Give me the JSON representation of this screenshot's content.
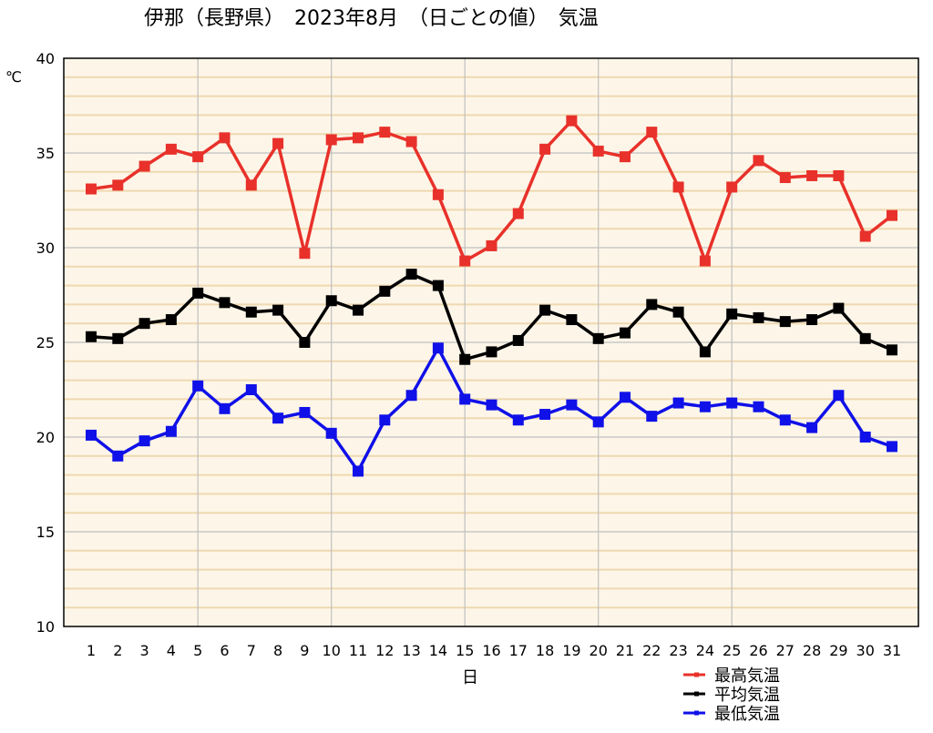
{
  "chart_data": {
    "type": "line",
    "title": "伊那（長野県）　2023年8月　（日ごとの値）　気温",
    "xlabel": "日",
    "ylabel": "℃",
    "ylim": [
      10,
      40
    ],
    "yticks": [
      10,
      15,
      20,
      25,
      30,
      35,
      40
    ],
    "grid": true,
    "legend_position": "bottom-right",
    "categories": [
      "1",
      "2",
      "3",
      "4",
      "5",
      "6",
      "7",
      "8",
      "9",
      "10",
      "11",
      "12",
      "13",
      "14",
      "15",
      "16",
      "17",
      "18",
      "19",
      "20",
      "21",
      "22",
      "23",
      "24",
      "25",
      "26",
      "27",
      "28",
      "29",
      "30",
      "31"
    ],
    "colors": {
      "background": "#fdf6e8",
      "minor_grid": "#eed8b0",
      "major_grid": "#c0c0c0"
    },
    "series": [
      {
        "name": "最高気温",
        "color": "#e8312a",
        "values": [
          33.1,
          33.3,
          34.3,
          35.2,
          34.8,
          35.8,
          33.3,
          35.5,
          29.7,
          35.7,
          35.8,
          36.1,
          35.6,
          32.8,
          29.3,
          30.1,
          31.8,
          35.2,
          36.7,
          35.1,
          34.8,
          36.1,
          33.2,
          29.3,
          33.2,
          34.6,
          33.7,
          33.8,
          33.8,
          30.6,
          31.7
        ]
      },
      {
        "name": "平均気温",
        "color": "#000000",
        "values": [
          25.3,
          25.2,
          26.0,
          26.2,
          27.6,
          27.1,
          26.6,
          26.7,
          25.0,
          27.2,
          26.7,
          27.7,
          28.6,
          28.0,
          24.1,
          24.5,
          25.1,
          26.7,
          26.2,
          25.2,
          25.5,
          27.0,
          26.6,
          24.5,
          26.5,
          26.3,
          26.1,
          26.2,
          26.8,
          25.2,
          24.6
        ]
      },
      {
        "name": "最低気温",
        "color": "#1010e8",
        "values": [
          20.1,
          19.0,
          19.8,
          20.3,
          22.7,
          21.5,
          22.5,
          21.0,
          21.3,
          20.2,
          18.2,
          20.9,
          22.2,
          24.7,
          22.0,
          21.7,
          20.9,
          21.2,
          21.7,
          20.8,
          22.1,
          21.1,
          21.8,
          21.6,
          21.8,
          21.6,
          20.9,
          20.5,
          22.2,
          20.0,
          19.5
        ]
      }
    ]
  }
}
